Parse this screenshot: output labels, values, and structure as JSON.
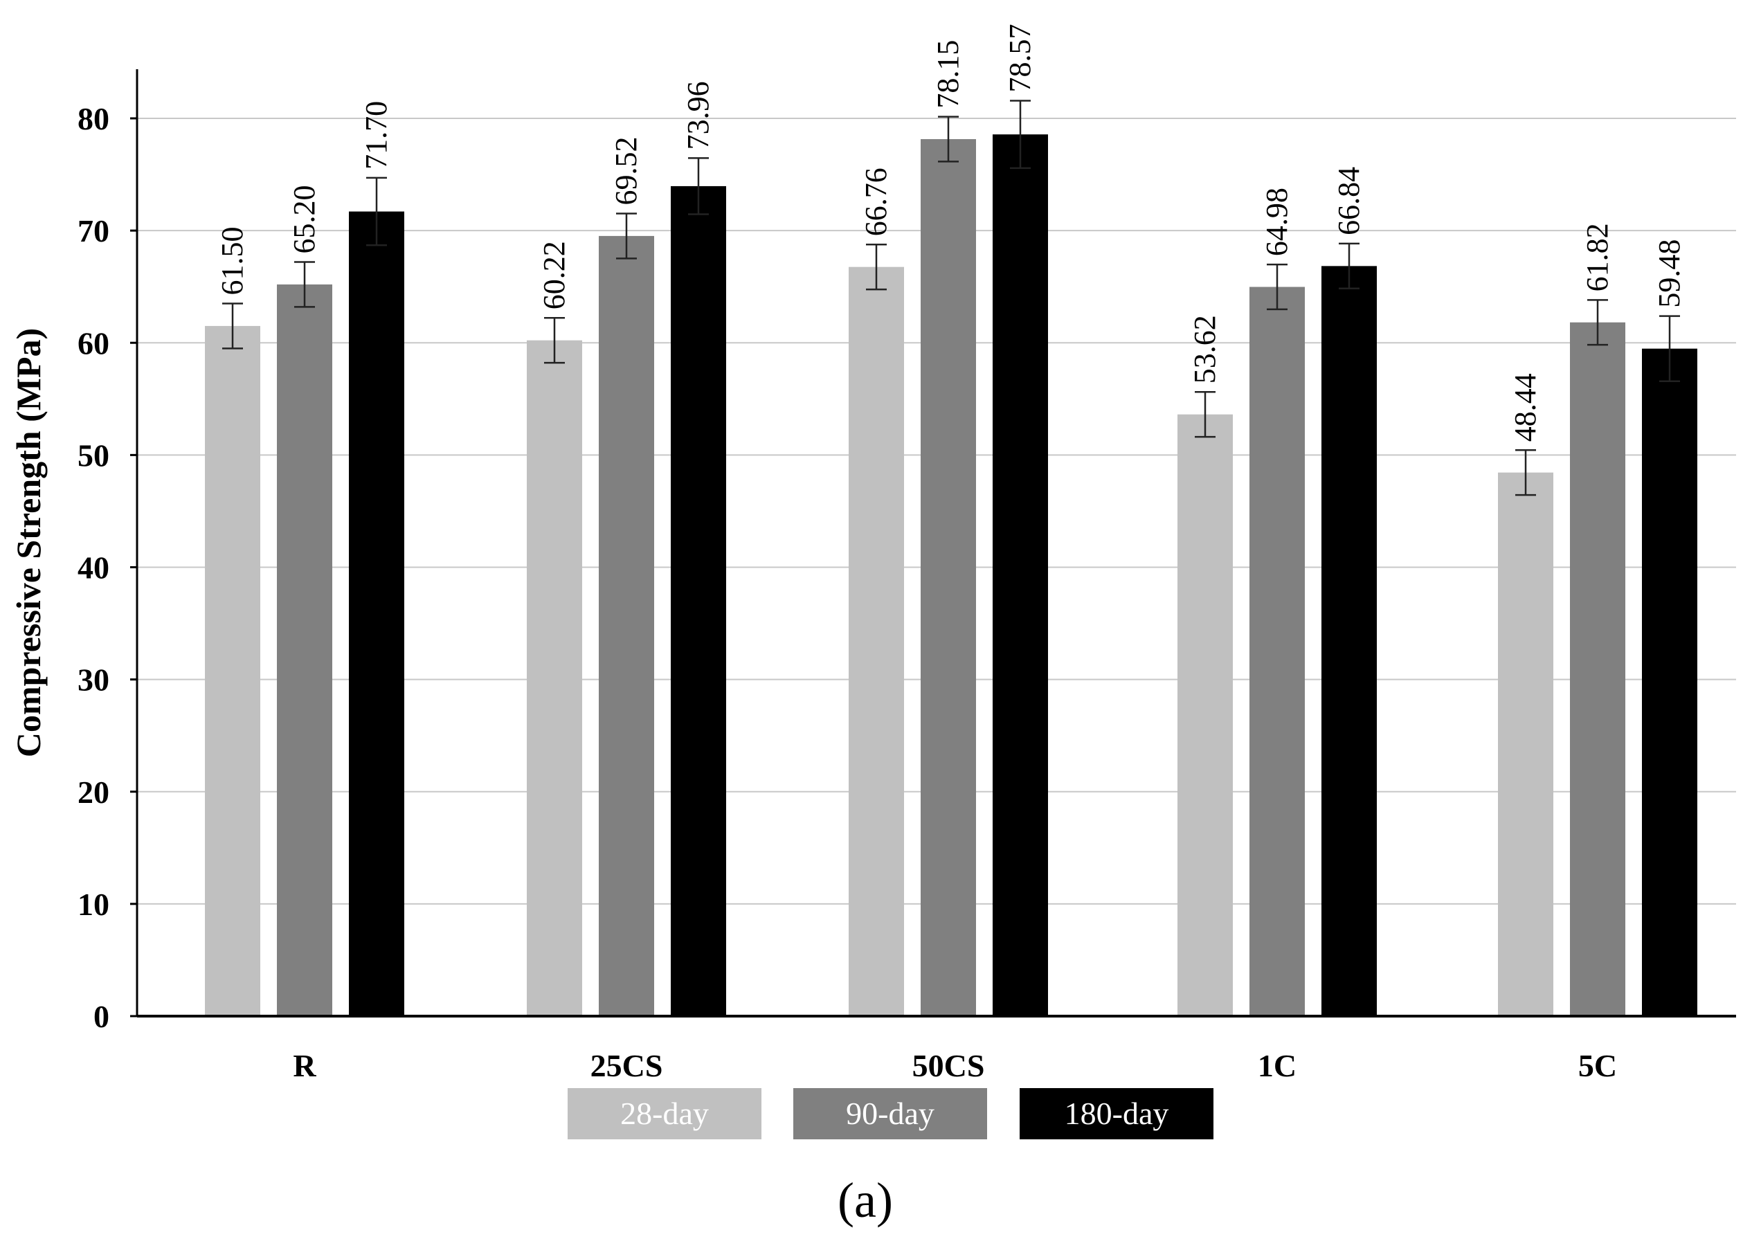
{
  "chart_data": {
    "type": "bar",
    "ylabel": "Compressive Strength (MPa)",
    "xlabel": "",
    "ylim": [
      0,
      80
    ],
    "yticks": [
      0,
      10,
      20,
      30,
      40,
      50,
      60,
      70,
      80
    ],
    "categories": [
      "R",
      "25CS",
      "50CS",
      "1C",
      "5C"
    ],
    "grid": true,
    "legend_position": "bottom",
    "series": [
      {
        "name": "28-day",
        "color": "#c0c0c0",
        "values": [
          61.5,
          60.22,
          66.76,
          53.62,
          48.44
        ],
        "labels": [
          "61.50",
          "60.22",
          "66.76",
          "53.62",
          "48.44"
        ],
        "errors": [
          2.0,
          2.0,
          2.0,
          2.0,
          2.0
        ]
      },
      {
        "name": "90-day",
        "color": "#808080",
        "values": [
          65.2,
          69.52,
          78.15,
          64.98,
          61.82
        ],
        "labels": [
          "65.20",
          "69.52",
          "78.15",
          "64.98",
          "61.82"
        ],
        "errors": [
          2.0,
          2.0,
          2.0,
          2.0,
          2.0
        ]
      },
      {
        "name": "180-day",
        "color": "#000000",
        "values": [
          71.7,
          73.96,
          78.57,
          66.84,
          59.48
        ],
        "labels": [
          "71.70",
          "73.96",
          "78.57",
          "66.84",
          "59.48"
        ],
        "errors": [
          3.0,
          2.5,
          3.0,
          2.0,
          2.9
        ]
      }
    ]
  },
  "caption": "(a)"
}
